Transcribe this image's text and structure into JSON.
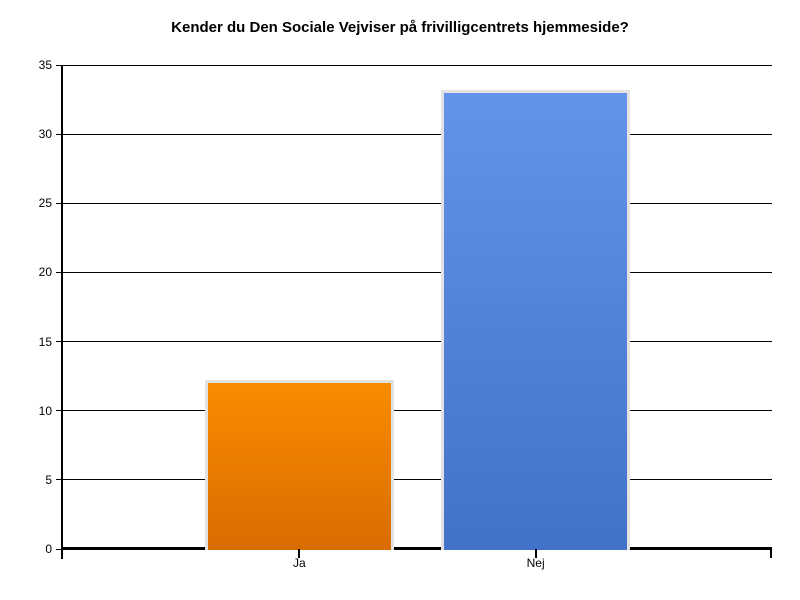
{
  "chart_data": {
    "type": "bar",
    "title": "Kender du Den Sociale Vejviser på frivilligcentrets hjemmeside?",
    "categories": [
      "Ja",
      "Nej"
    ],
    "values": [
      12,
      33
    ],
    "xlabel": "",
    "ylabel": "",
    "ylim": [
      0,
      35
    ],
    "yticks": [
      0,
      5,
      10,
      15,
      20,
      25,
      30,
      35
    ],
    "grid": "horizontal",
    "legend": "none",
    "background_color": "#FFFFFF",
    "axis_color": "#000000",
    "gridline_color": "#000000",
    "bar_border_color": "#E2E2E2",
    "series_colors": [
      {
        "name": "Ja",
        "top": "#F98C00",
        "bottom": "#D96C00"
      },
      {
        "name": "Nej",
        "top": "#6393EA",
        "bottom": "#4273C8"
      }
    ]
  }
}
